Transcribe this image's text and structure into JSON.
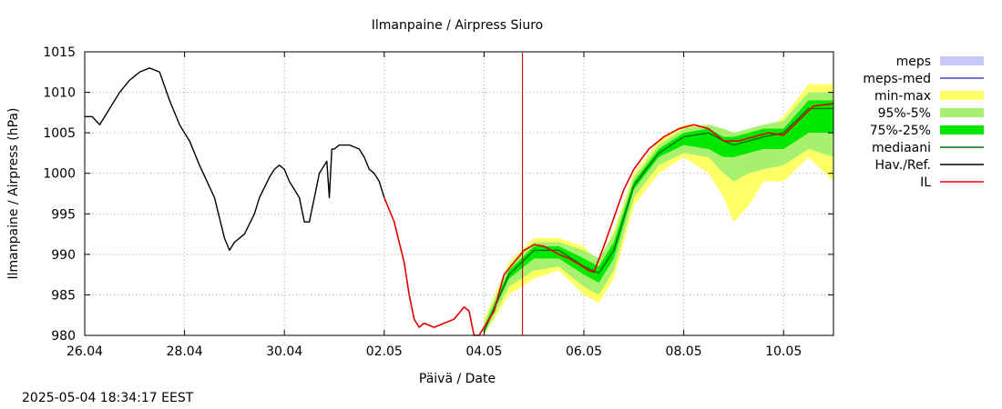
{
  "chart_data": {
    "type": "line",
    "title": "Ilmanpaine / Airpress Siuro",
    "xlabel": "Päivä / Date",
    "ylabel": "Ilmanpaine / Airpress (hPa)",
    "ylim": [
      980,
      1015
    ],
    "yticks": [
      980,
      985,
      990,
      995,
      1000,
      1005,
      1010,
      1015
    ],
    "xlim": [
      0,
      15
    ],
    "xticks": [
      {
        "x": 0,
        "label": "26.04"
      },
      {
        "x": 2,
        "label": "28.04"
      },
      {
        "x": 4,
        "label": "30.04"
      },
      {
        "x": 6,
        "label": "02.05"
      },
      {
        "x": 8,
        "label": "04.05"
      },
      {
        "x": 10,
        "label": "06.05"
      },
      {
        "x": 12,
        "label": "08.05"
      },
      {
        "x": 14,
        "label": "10.05"
      }
    ],
    "grid": true,
    "legend_placement": "right",
    "now_marker_x": 8.77,
    "series": [
      {
        "name": "meps",
        "color": "#c8c8f8",
        "kind": "band",
        "values": []
      },
      {
        "name": "meps-med",
        "color": "#4040c0",
        "kind": "line",
        "values": []
      },
      {
        "name": "min-max",
        "color": "#ffff66",
        "kind": "band",
        "x": [
          8.0,
          8.5,
          9.0,
          9.5,
          10.0,
          10.3,
          10.6,
          11.0,
          11.5,
          12.0,
          12.5,
          12.8,
          13.0,
          13.3,
          13.6,
          14.0,
          14.5,
          15.0
        ],
        "upper": [
          982,
          989,
          992,
          992,
          991,
          989,
          993,
          1000,
          1004,
          1006,
          1006,
          1005,
          1005,
          1005,
          1005,
          1007,
          1011,
          1011
        ],
        "lower": [
          980,
          985,
          987,
          988,
          985,
          984,
          987,
          996,
          1000,
          1002,
          1000,
          997,
          994,
          996,
          999,
          999,
          1002,
          999
        ]
      },
      {
        "name": "95%-5%",
        "color": "#a8f070",
        "kind": "band",
        "x": [
          8.0,
          8.5,
          9.0,
          9.5,
          10.0,
          10.3,
          10.6,
          11.0,
          11.5,
          12.0,
          12.5,
          12.8,
          13.0,
          13.3,
          13.6,
          14.0,
          14.5,
          15.0
        ],
        "upper": [
          981.5,
          988.5,
          991.5,
          991.5,
          990.5,
          989.5,
          992.5,
          999.5,
          1003.5,
          1005.5,
          1006,
          1005.5,
          1005,
          1005.5,
          1006,
          1006.5,
          1010,
          1010
        ],
        "lower": [
          980,
          986,
          988,
          988.5,
          986,
          985,
          988,
          997,
          1001,
          1002.5,
          1002,
          1000,
          999,
          1000,
          1000.5,
          1001,
          1003,
          1002
        ]
      },
      {
        "name": "75%-25%",
        "color": "#00e800",
        "kind": "band",
        "x": [
          8.0,
          8.5,
          9.0,
          9.5,
          10.0,
          10.3,
          10.6,
          11.0,
          11.5,
          12.0,
          12.5,
          12.8,
          13.0,
          13.3,
          13.6,
          14.0,
          14.5,
          15.0
        ],
        "upper": [
          981,
          988,
          991,
          991,
          989.5,
          988.5,
          991.5,
          999,
          1003,
          1005,
          1005.5,
          1004.5,
          1004.5,
          1005,
          1005.5,
          1005.5,
          1009,
          1009
        ],
        "lower": [
          980.5,
          987,
          989.5,
          989.5,
          987.5,
          986.5,
          989.5,
          998,
          1002,
          1003.5,
          1003,
          1002,
          1002,
          1002.5,
          1003,
          1003,
          1005,
          1005
        ]
      },
      {
        "name": "mediaani",
        "color": "#007000",
        "kind": "line",
        "x": [
          8.0,
          8.5,
          9.0,
          9.5,
          10.0,
          10.3,
          10.6,
          11.0,
          11.5,
          12.0,
          12.5,
          12.8,
          13.0,
          13.3,
          13.6,
          14.0,
          14.5,
          15.0
        ],
        "y": [
          980.5,
          987.5,
          990.5,
          990.5,
          988.5,
          987.7,
          990.5,
          998.5,
          1002.5,
          1004.5,
          1005,
          1004,
          1003.5,
          1004,
          1004.5,
          1005,
          1008,
          1008
        ]
      },
      {
        "name": "Hav./Ref.",
        "color": "#000000",
        "kind": "line",
        "x": [
          0.0,
          0.15,
          0.3,
          0.5,
          0.7,
          0.9,
          1.1,
          1.3,
          1.5,
          1.7,
          1.9,
          2.1,
          2.3,
          2.6,
          2.8,
          2.9,
          3.0,
          3.2,
          3.4,
          3.5,
          3.7,
          3.8,
          3.9,
          4.0,
          4.1,
          4.2,
          4.3,
          4.4,
          4.5,
          4.6,
          4.7,
          4.85,
          4.9,
          4.95,
          5.0,
          5.1,
          5.3,
          5.5,
          5.6,
          5.7,
          5.8,
          5.9,
          6.0
        ],
        "y": [
          1007,
          1007,
          1006,
          1008,
          1010,
          1011.5,
          1012.5,
          1013,
          1012.5,
          1009,
          1006,
          1004,
          1001,
          997,
          992,
          990.5,
          991.5,
          992.5,
          995,
          997,
          999.5,
          1000.5,
          1001,
          1000.5,
          999,
          998,
          997,
          994,
          994,
          997,
          1000,
          1001.5,
          997,
          1003,
          1003,
          1003.5,
          1003.5,
          1003,
          1002,
          1000.5,
          1000,
          999,
          997
        ]
      },
      {
        "name": "IL",
        "color": "#e00000",
        "kind": "line",
        "x": [
          6.0,
          6.2,
          6.4,
          6.5,
          6.6,
          6.7,
          6.8,
          7.0,
          7.2,
          7.4,
          7.6,
          7.7,
          7.8,
          7.9,
          8.0,
          8.2,
          8.4,
          8.6,
          8.8,
          9.0,
          9.2,
          9.5,
          9.7,
          9.9,
          10.1,
          10.2,
          10.4,
          10.6,
          10.8,
          11.0,
          11.3,
          11.6,
          11.9,
          12.2,
          12.5,
          12.8,
          13.1,
          13.4,
          13.7,
          14.0,
          14.3,
          14.6,
          15.0
        ],
        "y": [
          997,
          994,
          989,
          985,
          982,
          981,
          981.5,
          981,
          981.5,
          982,
          983.5,
          983,
          980,
          980,
          981,
          983,
          987.5,
          989,
          990.5,
          991.2,
          991,
          990,
          989.5,
          988.8,
          988,
          987.8,
          991,
          994.5,
          998,
          1000.5,
          1003,
          1004.5,
          1005.5,
          1006,
          1005.5,
          1004,
          1004,
          1004.5,
          1005,
          1004.7,
          1006.5,
          1008.3,
          1008.6
        ]
      }
    ]
  },
  "timestamp": "2025-05-04 18:34:17 EEST"
}
